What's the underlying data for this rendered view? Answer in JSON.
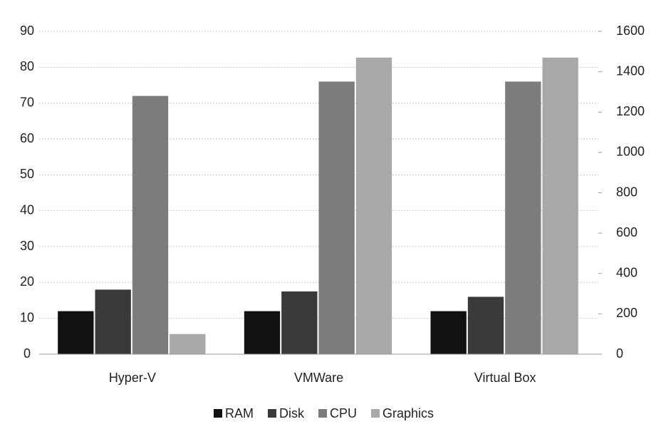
{
  "chart_data": {
    "type": "bar",
    "categories": [
      "Hyper-V",
      "VMWare",
      "Virtual Box"
    ],
    "series": [
      {
        "name": "RAM",
        "color": "#111111",
        "values": [
          12,
          12,
          12
        ]
      },
      {
        "name": "Disk",
        "color": "#3a3a3a",
        "values": [
          18,
          17.5,
          16
        ]
      },
      {
        "name": "CPU",
        "color": "#7c7c7c",
        "values": [
          72,
          76,
          76
        ]
      },
      {
        "name": "Graphics",
        "color": "#a8a8a8",
        "axis": "y2",
        "values": [
          100,
          1470,
          1470
        ]
      }
    ],
    "ylim": [
      0,
      90
    ],
    "yticks": [
      0,
      10,
      20,
      30,
      40,
      50,
      60,
      70,
      80,
      90
    ],
    "y2lim": [
      0,
      1600
    ],
    "y2ticks": [
      0,
      200,
      400,
      600,
      800,
      1000,
      1200,
      1400,
      1600
    ],
    "grid": true,
    "legend": "bottom"
  }
}
